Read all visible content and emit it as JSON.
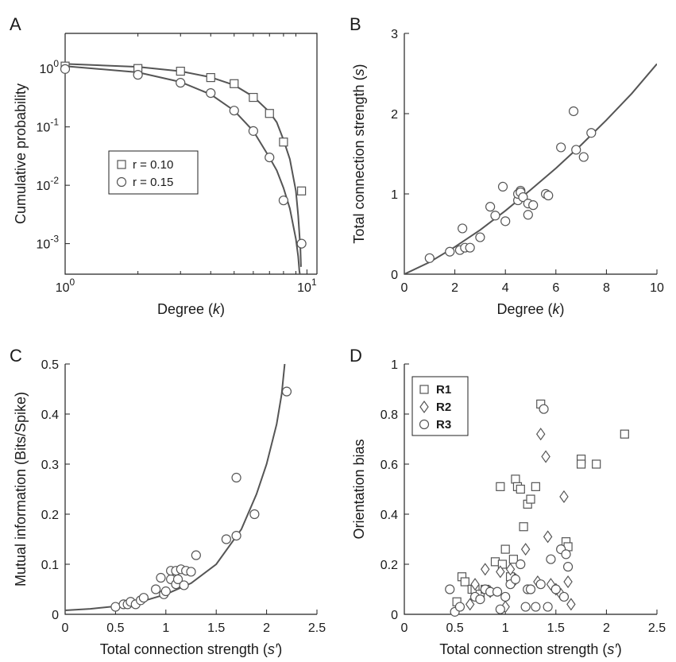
{
  "chart_data": [
    {
      "panel": "A",
      "type": "scatter",
      "xlabel": "Degree (k)",
      "xlabel_parts": [
        "Degree (",
        "k",
        ")"
      ],
      "ylabel": "Cumulative probability",
      "xscale": "log",
      "yscale": "log",
      "xlim": [
        1,
        11
      ],
      "ylim": [
        0.0003,
        4
      ],
      "xticks": [
        {
          "v": 1,
          "base": "10",
          "exp": "0"
        },
        {
          "v": 10,
          "base": "10",
          "exp": "1"
        }
      ],
      "yticks": [
        {
          "v": 1,
          "base": "10",
          "exp": "0"
        },
        {
          "v": 0.1,
          "base": "10",
          "exp": "-1"
        },
        {
          "v": 0.01,
          "base": "10",
          "exp": "-2"
        },
        {
          "v": 0.001,
          "base": "10",
          "exp": "-3"
        }
      ],
      "legend_position": "center-left",
      "series": [
        {
          "name": "r = 0.10",
          "marker": "square",
          "x": [
            1,
            2,
            3,
            4,
            5,
            6,
            7,
            8,
            9.5
          ],
          "y": [
            1.1,
            1.0,
            0.9,
            0.7,
            0.55,
            0.32,
            0.17,
            0.055,
            0.008
          ],
          "fit_x": [
            1,
            2,
            3,
            4,
            5,
            6,
            7,
            7.5,
            8,
            8.5,
            9,
            9.2,
            9.4,
            9.45
          ],
          "fit_y": [
            1.2,
            1.07,
            0.9,
            0.71,
            0.52,
            0.33,
            0.18,
            0.12,
            0.06,
            0.028,
            0.008,
            0.003,
            0.0008,
            0.0004
          ]
        },
        {
          "name": "r = 0.15",
          "marker": "circle",
          "x": [
            1,
            2,
            3,
            4,
            5,
            6,
            7,
            8,
            9.5
          ],
          "y": [
            0.98,
            0.78,
            0.57,
            0.38,
            0.19,
            0.085,
            0.03,
            0.0055,
            0.001
          ],
          "fit_x": [
            1,
            2,
            3,
            4,
            5,
            6,
            7,
            7.5,
            8,
            8.5,
            9,
            9.2,
            9.3,
            9.35
          ],
          "fit_y": [
            1.1,
            0.86,
            0.59,
            0.36,
            0.19,
            0.085,
            0.03,
            0.018,
            0.009,
            0.004,
            0.0012,
            0.0006,
            0.00035,
            0.0003
          ]
        }
      ]
    },
    {
      "panel": "B",
      "type": "scatter",
      "xlabel": "Degree (k)",
      "xlabel_parts": [
        "Degree (",
        "k",
        ")"
      ],
      "ylabel": "Total connection strength (s)",
      "ylabel_parts": [
        "Total connection strength (",
        "s",
        ")"
      ],
      "xlim": [
        0,
        10
      ],
      "ylim": [
        0,
        3
      ],
      "xticks": [
        0,
        2,
        4,
        6,
        8,
        10
      ],
      "yticks": [
        0,
        1,
        2,
        3
      ],
      "series": [
        {
          "marker": "circle",
          "x": [
            1,
            1.8,
            2.2,
            2.3,
            2.4,
            2.6,
            3,
            3.4,
            3.6,
            3.9,
            4,
            4.5,
            4.5,
            4.6,
            4.6,
            4.7,
            4.9,
            4.9,
            5.1,
            5.6,
            5.7,
            6.2,
            6.7,
            6.8,
            7.1,
            7.4
          ],
          "y": [
            0.2,
            0.28,
            0.3,
            0.57,
            0.33,
            0.33,
            0.46,
            0.84,
            0.73,
            1.09,
            0.66,
            0.92,
            1.0,
            1.04,
            1.02,
            0.96,
            0.74,
            0.88,
            0.86,
            1.0,
            0.98,
            1.58,
            2.03,
            1.55,
            1.46,
            1.76
          ],
          "fit_x": [
            0,
            1,
            2,
            3,
            4,
            5,
            6,
            7,
            8,
            9,
            10
          ],
          "fit_y": [
            0,
            0.15,
            0.34,
            0.55,
            0.79,
            1.05,
            1.32,
            1.61,
            1.92,
            2.25,
            2.62
          ]
        }
      ]
    },
    {
      "panel": "C",
      "type": "scatter",
      "xlabel": "Total connection strength (s′)",
      "xlabel_parts": [
        "Total connection strength (",
        "s′",
        ")"
      ],
      "ylabel": "Mutual information (Bits/Spike)",
      "xlim": [
        0,
        2.5
      ],
      "ylim": [
        0,
        0.5
      ],
      "xticks": [
        0,
        0.5,
        1,
        1.5,
        2,
        2.5
      ],
      "yticks": [
        0,
        0.1,
        0.2,
        0.3,
        0.4,
        0.5
      ],
      "series": [
        {
          "marker": "circle",
          "x": [
            0.5,
            0.58,
            0.62,
            0.65,
            0.7,
            0.75,
            0.78,
            0.9,
            0.95,
            0.98,
            1.0,
            1.05,
            1.05,
            1.1,
            1.1,
            1.12,
            1.15,
            1.18,
            1.2,
            1.25,
            1.3,
            1.6,
            1.7,
            1.7,
            1.88,
            2.2
          ],
          "y": [
            0.015,
            0.02,
            0.02,
            0.025,
            0.02,
            0.028,
            0.033,
            0.05,
            0.073,
            0.04,
            0.046,
            0.07,
            0.087,
            0.06,
            0.087,
            0.07,
            0.09,
            0.058,
            0.087,
            0.085,
            0.118,
            0.15,
            0.273,
            0.157,
            0.2,
            0.445
          ],
          "fit_x": [
            0,
            0.25,
            0.5,
            0.75,
            1.0,
            1.25,
            1.5,
            1.75,
            1.9,
            2.0,
            2.1,
            2.15,
            2.18
          ],
          "fit_y": [
            0.008,
            0.011,
            0.016,
            0.025,
            0.04,
            0.062,
            0.1,
            0.17,
            0.24,
            0.3,
            0.38,
            0.44,
            0.5
          ]
        }
      ]
    },
    {
      "panel": "D",
      "type": "scatter",
      "xlabel": "Total connection strength (s′)",
      "xlabel_parts": [
        "Total connection strength (",
        "s′",
        ")"
      ],
      "ylabel": "Orientation bias",
      "xlim": [
        0,
        2.5
      ],
      "ylim": [
        0,
        1
      ],
      "xticks": [
        0,
        0.5,
        1,
        1.5,
        2,
        2.5
      ],
      "yticks": [
        0,
        0.2,
        0.4,
        0.6,
        0.8,
        1
      ],
      "legend_position": "top-left",
      "series": [
        {
          "name": "R1",
          "marker": "square",
          "x": [
            0.52,
            0.57,
            0.6,
            0.67,
            0.7,
            0.75,
            0.8,
            0.9,
            0.95,
            0.97,
            1.0,
            1.05,
            1.08,
            1.1,
            1.12,
            1.15,
            1.18,
            1.22,
            1.25,
            1.3,
            1.35,
            1.6,
            1.62,
            1.75,
            1.75,
            1.9,
            2.18
          ],
          "x_note": "",
          "y": [
            0.05,
            0.15,
            0.13,
            0.1,
            0.1,
            0.08,
            0.1,
            0.21,
            0.51,
            0.2,
            0.26,
            0.15,
            0.22,
            0.54,
            0.51,
            0.5,
            0.35,
            0.44,
            0.46,
            0.51,
            0.84,
            0.29,
            0.27,
            0.62,
            0.6,
            0.6,
            0.72
          ]
        },
        {
          "name": "R2",
          "marker": "diamond",
          "x": [
            0.65,
            0.7,
            0.8,
            0.85,
            0.95,
            1.0,
            1.05,
            1.1,
            1.2,
            1.32,
            1.35,
            1.4,
            1.42,
            1.45,
            1.5,
            1.55,
            1.58,
            1.62,
            1.65
          ],
          "y": [
            0.04,
            0.12,
            0.18,
            0.09,
            0.17,
            0.03,
            0.18,
            0.14,
            0.26,
            0.13,
            0.72,
            0.63,
            0.31,
            0.12,
            0.1,
            0.08,
            0.47,
            0.13,
            0.04
          ]
        },
        {
          "name": "R3",
          "marker": "circle",
          "x": [
            0.45,
            0.5,
            0.55,
            0.7,
            0.75,
            0.8,
            0.85,
            0.92,
            0.95,
            1.0,
            1.05,
            1.1,
            1.15,
            1.2,
            1.22,
            1.25,
            1.3,
            1.35,
            1.38,
            1.42,
            1.45,
            1.5,
            1.55,
            1.58,
            1.6,
            1.62
          ],
          "y": [
            0.1,
            0.01,
            0.03,
            0.07,
            0.06,
            0.1,
            0.09,
            0.09,
            0.02,
            0.07,
            0.12,
            0.14,
            0.2,
            0.03,
            0.1,
            0.1,
            0.03,
            0.12,
            0.82,
            0.03,
            0.22,
            0.1,
            0.26,
            0.07,
            0.24,
            0.19
          ]
        }
      ]
    }
  ]
}
